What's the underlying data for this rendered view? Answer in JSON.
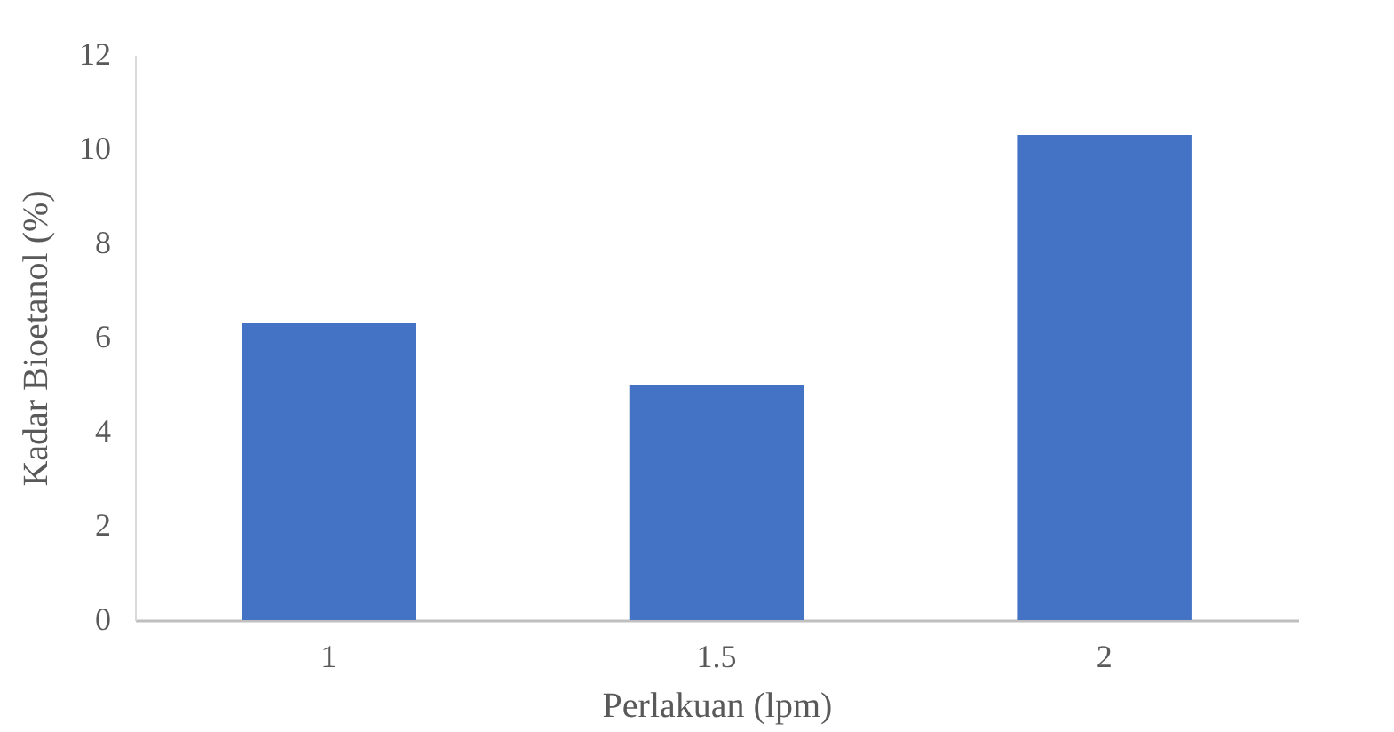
{
  "chart_data": {
    "type": "bar",
    "xlabel": "Perlakuan (lpm)",
    "ylabel": "Kadar Bioetanol (%)",
    "categories": [
      "1",
      "1.5",
      "2"
    ],
    "values": [
      6.3,
      5.0,
      10.3
    ],
    "color": "#4472c4",
    "ylim": [
      0,
      12
    ],
    "yticks": [
      0,
      2,
      4,
      6,
      8,
      10,
      12
    ],
    "grid": false
  }
}
